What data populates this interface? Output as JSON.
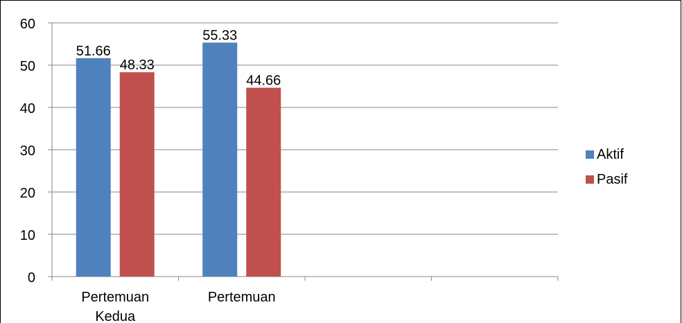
{
  "chart_data": {
    "type": "bar",
    "categories": [
      "Pertemuan Kedua",
      "Pertemuan",
      "",
      ""
    ],
    "series": [
      {
        "name": "Aktif",
        "color": "#4f81bd",
        "values": [
          51.66,
          55.33,
          null,
          null
        ]
      },
      {
        "name": "Pasif",
        "color": "#c0504d",
        "values": [
          48.33,
          44.66,
          null,
          null
        ]
      }
    ],
    "value_labels": [
      [
        "51.66",
        "55.33"
      ],
      [
        "48.33",
        "44.66"
      ]
    ],
    "ylim": [
      0,
      60
    ],
    "yticks": [
      0,
      10,
      20,
      30,
      40,
      50,
      60
    ],
    "grid": true,
    "legend_position": "right",
    "title": "",
    "xlabel": "",
    "ylabel": ""
  }
}
